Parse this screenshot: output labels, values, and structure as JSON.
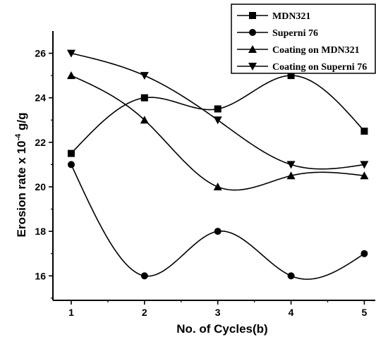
{
  "chart_data": {
    "type": "scatter",
    "xlabel": "No. of Cycles",
    "xlabel_suffix": "(b)",
    "ylabel_prefix": "Erosion rate x 10",
    "ylabel_exp": "-4",
    "ylabel_suffix": " g/g",
    "xlim": [
      0.75,
      5.15
    ],
    "ylim": [
      14.9,
      27.0
    ],
    "x_ticks": [
      1,
      2,
      3,
      4,
      5
    ],
    "y_ticks": [
      16,
      18,
      20,
      22,
      24,
      26
    ],
    "legend_position": "top-right",
    "x": [
      1,
      2,
      3,
      4,
      5
    ],
    "series": [
      {
        "name": "MDN321",
        "marker": "square",
        "values": [
          21.5,
          24.0,
          23.5,
          25.0,
          22.5
        ]
      },
      {
        "name": "Superni 76",
        "marker": "circle",
        "values": [
          21.0,
          16.0,
          18.0,
          16.0,
          17.0
        ]
      },
      {
        "name": "Coating on MDN321",
        "marker": "triangle-up",
        "values": [
          25.0,
          23.0,
          20.0,
          20.5,
          20.5
        ]
      },
      {
        "name": "Coating on Superni 76",
        "marker": "triangle-down",
        "values": [
          26.0,
          25.0,
          23.0,
          21.0,
          21.0
        ]
      }
    ],
    "fit_curves": true,
    "color": "#000000"
  }
}
